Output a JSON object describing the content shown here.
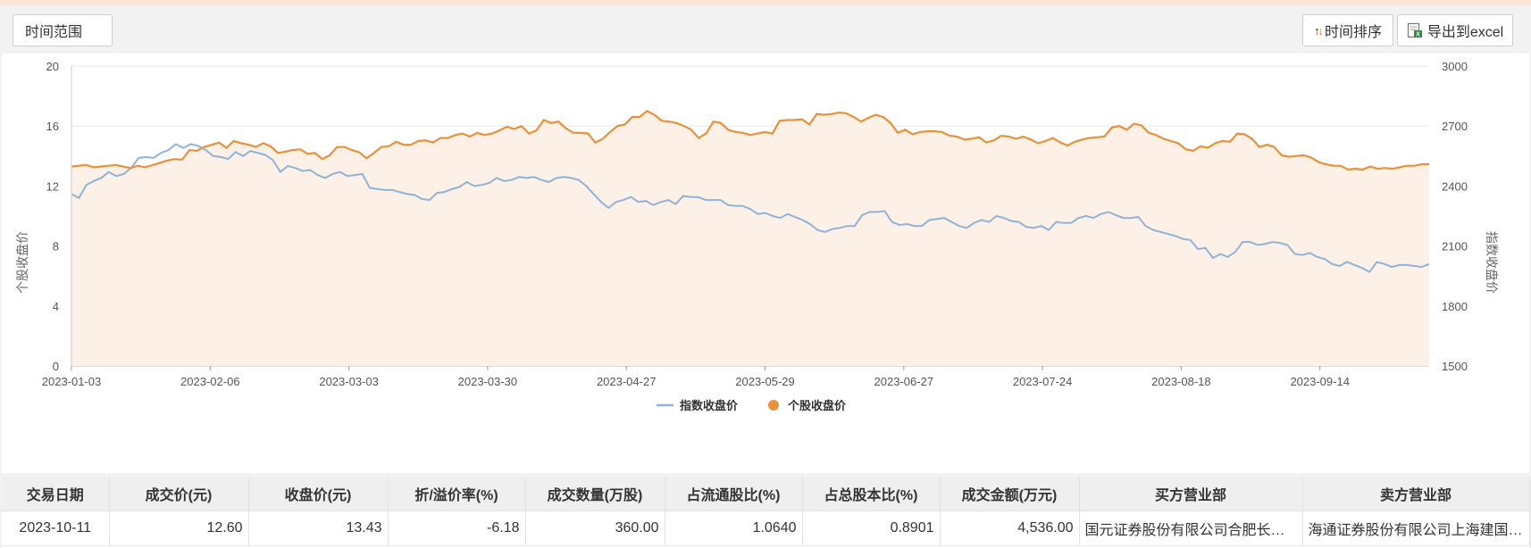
{
  "toolbar": {
    "range_label": "时间范围",
    "sort_label": "时间排序",
    "export_label": "导出到excel"
  },
  "colors": {
    "index": "#8fb3d9",
    "stock": "#e8913a",
    "area": "#fdf0e6"
  },
  "chart_data": {
    "type": "line",
    "x_tick_labels": [
      "2023-01-03",
      "2023-02-06",
      "2023-03-03",
      "2023-03-30",
      "2023-04-27",
      "2023-05-29",
      "2023-06-27",
      "2023-07-24",
      "2023-08-18",
      "2023-09-14"
    ],
    "y_left": {
      "label": "个股收盘价",
      "min": 0,
      "max": 20,
      "ticks": [
        0,
        4,
        8,
        12,
        16,
        20
      ]
    },
    "y_right": {
      "label": "指数收盘价",
      "min": 1500,
      "max": 3000,
      "ticks": [
        1500,
        1800,
        2100,
        2400,
        2700,
        3000
      ]
    },
    "legend_position": "bottom",
    "grid": true,
    "series": [
      {
        "name": "指数收盘价",
        "axis": "right",
        "values": [
          2360,
          2340,
          2405,
          2425,
          2440,
          2470,
          2450,
          2460,
          2490,
          2540,
          2545,
          2540,
          2565,
          2580,
          2610,
          2590,
          2610,
          2600,
          2580,
          2550,
          2545,
          2535,
          2570,
          2550,
          2575,
          2565,
          2555,
          2530,
          2470,
          2500,
          2490,
          2475,
          2480,
          2455,
          2440,
          2460,
          2470,
          2450,
          2455,
          2460,
          2390,
          2385,
          2380,
          2380,
          2370,
          2360,
          2355,
          2335,
          2330,
          2365,
          2370,
          2385,
          2395,
          2420,
          2400,
          2405,
          2415,
          2440,
          2425,
          2430,
          2445,
          2440,
          2445,
          2430,
          2420,
          2440,
          2445,
          2440,
          2430,
          2400,
          2360,
          2320,
          2290,
          2320,
          2330,
          2345,
          2320,
          2325,
          2305,
          2320,
          2330,
          2310,
          2350,
          2345,
          2345,
          2330,
          2330,
          2330,
          2305,
          2300,
          2300,
          2285,
          2260,
          2265,
          2250,
          2240,
          2260,
          2245,
          2230,
          2210,
          2180,
          2170,
          2185,
          2190,
          2200,
          2200,
          2255,
          2270,
          2270,
          2275,
          2220,
          2205,
          2210,
          2200,
          2200,
          2230,
          2235,
          2240,
          2220,
          2200,
          2190,
          2215,
          2230,
          2220,
          2250,
          2240,
          2225,
          2220,
          2195,
          2190,
          2200,
          2180,
          2220,
          2215,
          2215,
          2240,
          2250,
          2240,
          2260,
          2270,
          2255,
          2240,
          2240,
          2245,
          2200,
          2180,
          2170,
          2160,
          2150,
          2135,
          2130,
          2085,
          2090,
          2040,
          2060,
          2045,
          2070,
          2120,
          2120,
          2105,
          2110,
          2120,
          2115,
          2105,
          2060,
          2055,
          2065,
          2045,
          2035,
          2010,
          2000,
          2020,
          2005,
          1990,
          1970,
          2020,
          2010,
          1995,
          2005,
          2005,
          2000,
          1995,
          2010
        ]
      },
      {
        "name": "个股收盘价",
        "axis": "left",
        "values": [
          13.3,
          13.35,
          13.4,
          13.25,
          13.3,
          13.35,
          13.4,
          13.3,
          13.2,
          13.35,
          13.25,
          13.4,
          13.55,
          13.7,
          13.8,
          13.75,
          14.4,
          14.35,
          14.6,
          14.75,
          14.9,
          14.55,
          15.0,
          14.85,
          14.75,
          14.6,
          14.85,
          14.65,
          14.2,
          14.3,
          14.4,
          14.45,
          14.15,
          14.2,
          13.8,
          14.05,
          14.6,
          14.6,
          14.4,
          14.25,
          13.85,
          14.2,
          14.6,
          14.65,
          14.95,
          14.75,
          14.75,
          15.0,
          15.05,
          14.9,
          15.2,
          15.2,
          15.4,
          15.5,
          15.3,
          15.55,
          15.4,
          15.5,
          15.7,
          15.95,
          15.8,
          16.0,
          15.5,
          15.7,
          16.4,
          16.2,
          16.3,
          15.85,
          15.55,
          15.55,
          15.5,
          14.9,
          15.15,
          15.6,
          16.0,
          16.1,
          16.6,
          16.6,
          17.0,
          16.75,
          16.35,
          16.3,
          16.2,
          16.0,
          15.75,
          15.2,
          15.5,
          16.3,
          16.2,
          15.75,
          15.6,
          15.55,
          15.4,
          15.5,
          15.6,
          15.5,
          16.35,
          16.4,
          16.4,
          16.45,
          16.1,
          16.8,
          16.75,
          16.8,
          16.9,
          16.85,
          16.6,
          16.3,
          16.55,
          16.75,
          16.6,
          16.2,
          15.55,
          15.75,
          15.45,
          15.6,
          15.65,
          15.65,
          15.6,
          15.35,
          15.3,
          15.1,
          15.15,
          15.25,
          14.9,
          15.05,
          15.35,
          15.3,
          15.15,
          15.3,
          15.1,
          14.85,
          15.0,
          15.2,
          14.9,
          14.7,
          14.95,
          15.1,
          15.2,
          15.25,
          15.3,
          15.9,
          16.0,
          15.75,
          16.15,
          16.05,
          15.55,
          15.4,
          15.15,
          15.0,
          14.85,
          14.45,
          14.35,
          14.65,
          14.55,
          14.85,
          15.0,
          14.95,
          15.5,
          15.45,
          15.15,
          14.6,
          14.75,
          14.6,
          14.05,
          13.95,
          14.0,
          14.05,
          13.9,
          13.6,
          13.45,
          13.35,
          13.35,
          13.1,
          13.15,
          13.1,
          13.3,
          13.15,
          13.2,
          13.15,
          13.25,
          13.35,
          13.35,
          13.45,
          13.45
        ]
      }
    ]
  },
  "table": {
    "headers": [
      "交易日期",
      "成交价(元)",
      "收盘价(元)",
      "折/溢价率(%)",
      "成交数量(万股)",
      "占流通股比(%)",
      "占总股本比(%)",
      "成交金额(万元)",
      "买方营业部",
      "卖方营业部"
    ],
    "rows": [
      [
        "2023-10-11",
        "12.60",
        "13.43",
        "-6.18",
        "360.00",
        "1.0640",
        "0.8901",
        "4,536.00",
        "国元证券股份有限公司合肥长江西路证券营业部",
        "海通证券股份有限公司上海建国西路证券营业部"
      ]
    ]
  }
}
